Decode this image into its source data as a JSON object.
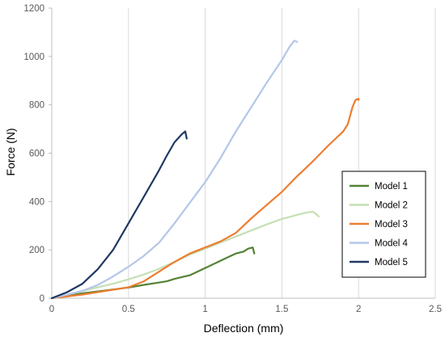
{
  "chart_data": {
    "type": "line",
    "xlabel": "Deflection (mm)",
    "ylabel": "Force (N)",
    "xlim": [
      0,
      2.5
    ],
    "ylim": [
      0,
      1200
    ],
    "xticks": [
      "0",
      "0.5",
      "1",
      "1.5",
      "2",
      "2.5"
    ],
    "yticks": [
      "0",
      "200",
      "400",
      "600",
      "800",
      "1000",
      "1200"
    ],
    "xtick_values": [
      0,
      0.5,
      1,
      1.5,
      2,
      2.5
    ],
    "ytick_values": [
      0,
      200,
      400,
      600,
      800,
      1000,
      1200
    ],
    "grid": "vertical",
    "legend_position": "right",
    "series": [
      {
        "name": "Model 1",
        "color": "#548235",
        "points": [
          [
            0,
            0
          ],
          [
            0.1,
            10
          ],
          [
            0.2,
            20
          ],
          [
            0.3,
            28
          ],
          [
            0.4,
            36
          ],
          [
            0.5,
            44
          ],
          [
            0.6,
            55
          ],
          [
            0.7,
            65
          ],
          [
            0.75,
            70
          ],
          [
            0.8,
            80
          ],
          [
            0.9,
            95
          ],
          [
            1.0,
            125
          ],
          [
            1.1,
            155
          ],
          [
            1.15,
            170
          ],
          [
            1.2,
            185
          ],
          [
            1.25,
            193
          ],
          [
            1.28,
            205
          ],
          [
            1.31,
            210
          ],
          [
            1.32,
            185
          ]
        ]
      },
      {
        "name": "Model 2",
        "color": "#c5e0b4",
        "points": [
          [
            0,
            0
          ],
          [
            0.1,
            15
          ],
          [
            0.2,
            30
          ],
          [
            0.3,
            45
          ],
          [
            0.4,
            60
          ],
          [
            0.5,
            78
          ],
          [
            0.6,
            98
          ],
          [
            0.7,
            122
          ],
          [
            0.8,
            150
          ],
          [
            0.9,
            180
          ],
          [
            1.0,
            205
          ],
          [
            1.1,
            230
          ],
          [
            1.2,
            255
          ],
          [
            1.3,
            280
          ],
          [
            1.4,
            305
          ],
          [
            1.5,
            328
          ],
          [
            1.6,
            345
          ],
          [
            1.65,
            353
          ],
          [
            1.7,
            358
          ],
          [
            1.72,
            350
          ],
          [
            1.74,
            338
          ]
        ]
      },
      {
        "name": "Model 3",
        "color": "#ed7d31",
        "points": [
          [
            0,
            0
          ],
          [
            0.2,
            15
          ],
          [
            0.4,
            35
          ],
          [
            0.5,
            45
          ],
          [
            0.6,
            70
          ],
          [
            0.7,
            110
          ],
          [
            0.8,
            150
          ],
          [
            0.9,
            185
          ],
          [
            1.0,
            210
          ],
          [
            1.1,
            235
          ],
          [
            1.2,
            270
          ],
          [
            1.3,
            330
          ],
          [
            1.4,
            385
          ],
          [
            1.5,
            440
          ],
          [
            1.6,
            505
          ],
          [
            1.7,
            565
          ],
          [
            1.8,
            630
          ],
          [
            1.85,
            660
          ],
          [
            1.9,
            690
          ],
          [
            1.93,
            720
          ],
          [
            1.96,
            790
          ],
          [
            1.98,
            820
          ],
          [
            2.0,
            825
          ],
          [
            2.0,
            820
          ]
        ]
      },
      {
        "name": "Model 4",
        "color": "#b4c7e7",
        "points": [
          [
            0,
            0
          ],
          [
            0.1,
            15
          ],
          [
            0.2,
            30
          ],
          [
            0.3,
            55
          ],
          [
            0.4,
            90
          ],
          [
            0.5,
            130
          ],
          [
            0.6,
            175
          ],
          [
            0.7,
            230
          ],
          [
            0.8,
            310
          ],
          [
            0.9,
            395
          ],
          [
            1.0,
            480
          ],
          [
            1.1,
            580
          ],
          [
            1.2,
            690
          ],
          [
            1.3,
            790
          ],
          [
            1.4,
            890
          ],
          [
            1.5,
            985
          ],
          [
            1.55,
            1040
          ],
          [
            1.58,
            1065
          ],
          [
            1.6,
            1060
          ]
        ]
      },
      {
        "name": "Model 5",
        "color": "#203864",
        "points": [
          [
            0,
            0
          ],
          [
            0.1,
            25
          ],
          [
            0.2,
            60
          ],
          [
            0.3,
            120
          ],
          [
            0.4,
            200
          ],
          [
            0.5,
            310
          ],
          [
            0.6,
            420
          ],
          [
            0.7,
            530
          ],
          [
            0.75,
            590
          ],
          [
            0.8,
            645
          ],
          [
            0.85,
            680
          ],
          [
            0.87,
            690
          ],
          [
            0.88,
            660
          ]
        ]
      }
    ]
  }
}
